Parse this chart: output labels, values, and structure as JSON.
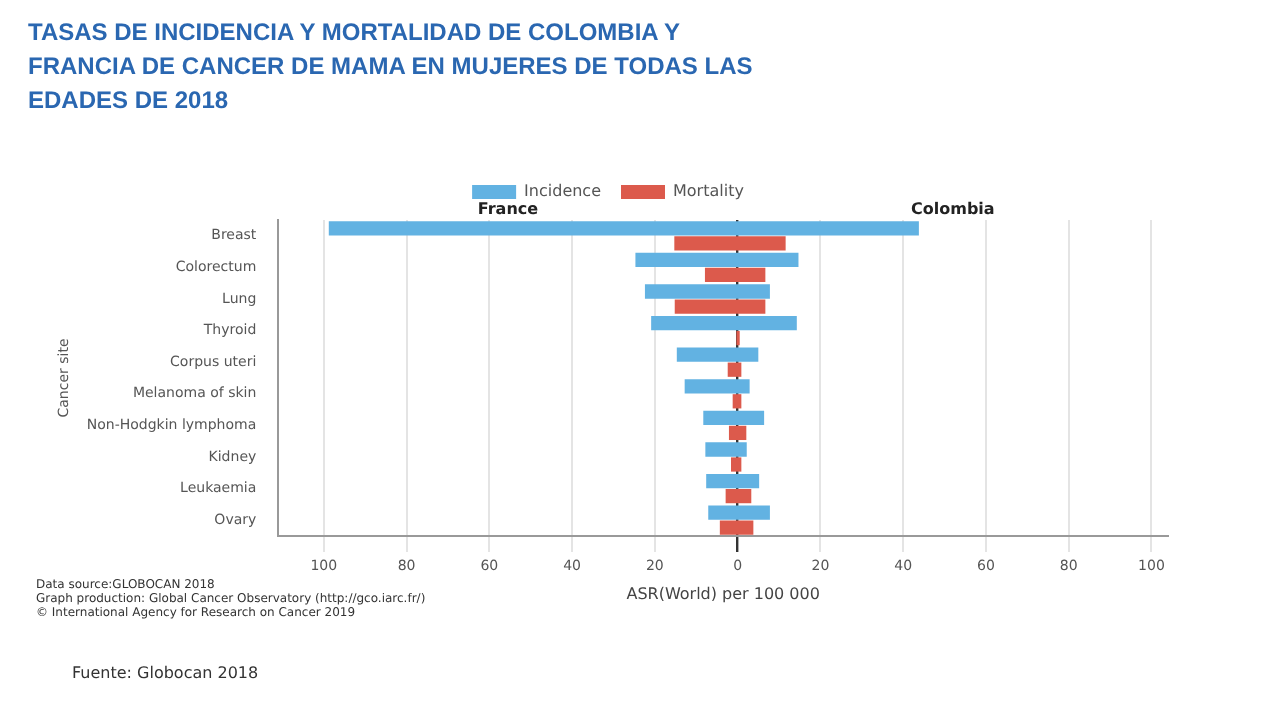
{
  "chart_data": {
    "type": "bar",
    "orientation": "horizontal",
    "title": "TASAS DE INCIDENCIA Y MORTALIDAD DE COLOMBIA Y FRANCIA DE CANCER DE MAMA  EN MUJERES DE TODAS LAS EDADES DE 2018",
    "xlabel": "ASR(World) per 100 000",
    "ylabel": "Cancer site",
    "categories": [
      "Breast",
      "Colorectum",
      "Lung",
      "Thyroid",
      "Corpus uteri",
      "Melanoma of skin",
      "Non-Hodgkin lymphoma",
      "Kidney",
      "Leukaemia",
      "Ovary"
    ],
    "series": [
      {
        "name": "Incidence",
        "color": "#62b2e2",
        "base": [
          -98.8,
          -24.7,
          -22.4,
          -20.9,
          -14.7,
          -12.8,
          -8.3,
          -7.8,
          -7.6,
          -7.1
        ],
        "values": [
          142.6,
          39.4,
          30.2,
          35.2,
          19.7,
          15.7,
          14.7,
          10.0,
          12.8,
          14.9
        ]
      },
      {
        "name": "Mortality",
        "color": "#dc5a4c",
        "base": [
          -15.3,
          -7.9,
          -15.2,
          -0.3,
          -2.4,
          -1.2,
          -2.1,
          -1.6,
          -2.9,
          -4.3
        ],
        "values": [
          26.9,
          14.6,
          21.9,
          0.8,
          3.3,
          2.1,
          4.2,
          2.5,
          6.2,
          8.1
        ]
      }
    ],
    "xlim": [
      -111,
      104
    ],
    "xticks": [
      {
        "value": -100,
        "label": "100"
      },
      {
        "value": -80,
        "label": "80"
      },
      {
        "value": -60,
        "label": "60"
      },
      {
        "value": -40,
        "label": "40"
      },
      {
        "value": -20,
        "label": "20"
      },
      0,
      20,
      40,
      60,
      80,
      100
    ],
    "grid": "x",
    "legend": "top",
    "annotations": [
      "France",
      "Colombia",
      "Data source:GLOBOCAN 2018",
      "Graph production: Global Cancer Observatory (http://gco.iarc.fr/)",
      "© International Agency for Research on Cancer 2019",
      "Fuente: Globocan 2018"
    ]
  }
}
